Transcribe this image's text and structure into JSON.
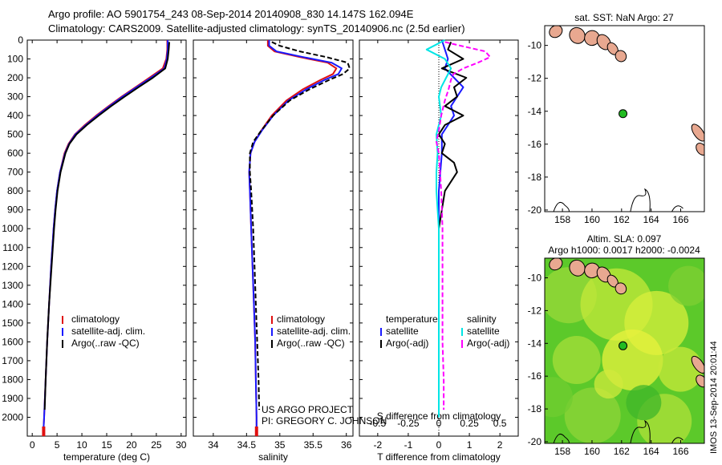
{
  "header": {
    "title1": "Argo profile: AO 5901754_243 08-Sep-2014 20140908_830 14.147S 162.094E",
    "title2": "Climatology: CARS2009. Satellite-adjusted climatology: synTS_20140906.nc (2.5d earlier)"
  },
  "stamp": "IMOS 13-Sep-2014 20:01:44",
  "colors": {
    "climatology": "#e01010",
    "satellite": "#1a1aff",
    "argo": "#000000",
    "sal_satellite": "#00e5e5",
    "sal_argo": "#ff00ff",
    "map_dot": "#22bb22",
    "land": "#e8a890"
  },
  "chart_data": [
    {
      "type": "line",
      "name": "temperature-panel",
      "xlabel": "temperature (deg C)",
      "ylim": [
        2100,
        0
      ],
      "xlim": [
        -1,
        31
      ],
      "xticks": [
        0,
        5,
        10,
        15,
        20,
        25,
        30
      ],
      "yticks": [
        0,
        100,
        200,
        300,
        400,
        500,
        600,
        700,
        800,
        900,
        1000,
        1100,
        1200,
        1300,
        1400,
        1500,
        1600,
        1700,
        1800,
        1900,
        2000
      ],
      "legend": [
        "climatology",
        "satellite-adj. clim.",
        "Argo(..raw -QC)"
      ],
      "series": [
        {
          "name": "climatology",
          "depth": [
            0,
            50,
            100,
            150,
            200,
            250,
            300,
            350,
            400,
            450,
            500,
            550,
            600,
            700,
            800,
            900,
            1000,
            1200,
            1400,
            1600,
            1800,
            2000,
            2050
          ],
          "values": [
            27.2,
            27.2,
            27.0,
            26.3,
            23.6,
            20.8,
            18.0,
            15.4,
            12.9,
            10.6,
            8.6,
            7.3,
            6.5,
            5.6,
            5.0,
            4.6,
            4.3,
            3.8,
            3.4,
            3.0,
            2.7,
            2.4,
            2.3
          ]
        },
        {
          "name": "satellite-adj. clim.",
          "depth": [
            0,
            50,
            100,
            150,
            200,
            250,
            300,
            350,
            400,
            450,
            500,
            550,
            600,
            700,
            800,
            900,
            1000,
            1200,
            1400,
            1600,
            1800,
            2000,
            2050
          ],
          "values": [
            27.3,
            27.3,
            27.1,
            26.6,
            23.9,
            21.0,
            18.2,
            15.6,
            13.1,
            10.8,
            8.7,
            7.4,
            6.6,
            5.6,
            5.0,
            4.6,
            4.3,
            3.8,
            3.4,
            3.0,
            2.7,
            2.4,
            2.3
          ]
        },
        {
          "name": "Argo(..raw -QC)",
          "depth": [
            10,
            50,
            100,
            150,
            200,
            250,
            300,
            350,
            400,
            450,
            500,
            550,
            600,
            700,
            800,
            900,
            1000,
            1200,
            1400,
            1600,
            1800,
            1960
          ],
          "values": [
            27.6,
            27.5,
            27.3,
            26.8,
            24.3,
            21.4,
            18.6,
            15.9,
            13.4,
            11.0,
            8.9,
            7.5,
            6.7,
            5.7,
            5.1,
            4.7,
            4.4,
            3.9,
            3.4,
            3.0,
            2.7,
            2.5
          ]
        }
      ]
    },
    {
      "type": "line",
      "name": "salinity-panel",
      "xlabel": "salinity",
      "ylim": [
        2100,
        0
      ],
      "xlim": [
        33.7,
        36.1
      ],
      "xticks": [
        34,
        34.5,
        35,
        35.5,
        36
      ],
      "xticklabels": [
        "34",
        "34.5",
        "35",
        "35.5",
        "36"
      ],
      "legend": [
        "climatology",
        "satellite-adj. clim.",
        "Argo(..raw -QC)"
      ],
      "annotation": [
        "US ARGO PROJECT",
        "PI: GREGORY C. JOHNSON"
      ],
      "series": [
        {
          "name": "climatology",
          "depth": [
            0,
            30,
            60,
            90,
            120,
            150,
            180,
            210,
            260,
            320,
            400,
            480,
            540,
            600,
            700,
            800,
            1000,
            1200,
            1400,
            1600,
            1800,
            2000,
            2050
          ],
          "values": [
            34.82,
            34.82,
            34.92,
            35.3,
            35.72,
            35.85,
            35.8,
            35.62,
            35.35,
            35.1,
            34.88,
            34.72,
            34.62,
            34.56,
            34.54,
            34.55,
            34.57,
            34.59,
            34.61,
            34.63,
            34.64,
            34.65,
            34.65
          ]
        },
        {
          "name": "satellite-adj. clim.",
          "depth": [
            0,
            30,
            60,
            90,
            120,
            150,
            180,
            210,
            260,
            320,
            400,
            480,
            540,
            600,
            700,
            800,
            1000,
            1200,
            1400,
            1600,
            1800,
            2000,
            2050
          ],
          "values": [
            34.84,
            34.84,
            34.95,
            35.35,
            35.78,
            35.93,
            35.88,
            35.68,
            35.4,
            35.13,
            34.9,
            34.73,
            34.62,
            34.56,
            34.54,
            34.55,
            34.57,
            34.59,
            34.61,
            34.63,
            34.64,
            34.65,
            34.65
          ]
        },
        {
          "name": "Argo(..raw -QC)",
          "depth": [
            10,
            30,
            60,
            90,
            120,
            150,
            180,
            210,
            260,
            320,
            400,
            480,
            540,
            600,
            700,
            800,
            1000,
            1200,
            1400,
            1600,
            1800,
            1960
          ],
          "values": [
            34.88,
            35.0,
            35.3,
            35.7,
            36.02,
            36.05,
            35.95,
            35.75,
            35.45,
            35.15,
            34.9,
            34.72,
            34.6,
            34.55,
            34.55,
            34.57,
            34.6,
            34.62,
            34.64,
            34.66,
            34.68,
            34.69
          ]
        }
      ]
    },
    {
      "type": "line",
      "name": "difference-panel",
      "xlabel": "T difference from climatology",
      "xlabel2": "S difference from climatology",
      "ylim": [
        2100,
        0
      ],
      "xlim": [
        -2.6,
        2.6
      ],
      "xticks": [
        -2,
        -1,
        0,
        1,
        2
      ],
      "xticks2": [
        -0.5,
        -0.25,
        0,
        0.25,
        0.5
      ],
      "xticklabels2": [
        "-0.5",
        "-0.25",
        "0",
        "0.25",
        "0.5"
      ],
      "legend_titles": [
        "temperature",
        "salinity"
      ],
      "legend": [
        "satellite",
        "Argo(-adj)",
        "satellite",
        "Argo(-adj)"
      ],
      "series": [
        {
          "name": "temperature satellite",
          "depth": [
            0,
            50,
            100,
            150,
            200,
            250,
            300,
            350,
            400,
            450,
            500,
            550,
            600,
            700,
            800,
            1000,
            1200,
            1400,
            1600,
            1800,
            2000
          ],
          "values": [
            0.1,
            0.2,
            0.3,
            0.2,
            0.5,
            0.8,
            0.6,
            0.4,
            0.5,
            0.3,
            0.1,
            0.1,
            0.1,
            0.05,
            0.0,
            0.0,
            0.0,
            0.0,
            0.0,
            0.0,
            0.0
          ]
        },
        {
          "name": "temperature Argo(-adj)",
          "depth": [
            10,
            50,
            100,
            150,
            200,
            250,
            300,
            350,
            400,
            450,
            500,
            550,
            600,
            650,
            700,
            800,
            1000,
            1200,
            1400,
            1600,
            1800,
            1960
          ],
          "values": [
            0.4,
            0.3,
            0.8,
            0.1,
            0.9,
            0.5,
            0.6,
            0.2,
            0.8,
            0.2,
            0.0,
            0.2,
            0.1,
            0.5,
            0.6,
            0.2,
            0.0,
            0.0,
            0.0,
            0.0,
            0.0,
            0.0
          ]
        },
        {
          "name": "salinity satellite",
          "depth": [
            0,
            50,
            100,
            150,
            200,
            250,
            300,
            400,
            500,
            600,
            700,
            800,
            1000,
            1200,
            1400,
            1600,
            1800,
            2000
          ],
          "values": [
            0.05,
            -0.1,
            0.05,
            0.1,
            0.06,
            0.02,
            0.0,
            0.02,
            -0.02,
            -0.01,
            -0.02,
            -0.02,
            0.0,
            0.0,
            0.0,
            0.0,
            0.0,
            0.0
          ]
        },
        {
          "name": "salinity Argo(-adj)",
          "depth": [
            10,
            30,
            60,
            90,
            120,
            150,
            180,
            210,
            260,
            320,
            400,
            480,
            540,
            600,
            700,
            800,
            1000,
            1200,
            1400,
            1600,
            1800,
            1960
          ],
          "values": [
            0.05,
            0.18,
            0.38,
            0.42,
            0.32,
            0.2,
            0.12,
            0.1,
            0.08,
            0.05,
            0.02,
            0.0,
            -0.02,
            0.0,
            0.01,
            0.02,
            0.03,
            0.03,
            0.03,
            0.03,
            0.04,
            0.04
          ]
        }
      ]
    },
    {
      "type": "scatter",
      "name": "sst-map",
      "title": "sat. SST: NaN Argo: 27",
      "xlim": [
        156.8,
        167.6
      ],
      "ylim": [
        -20.1,
        -8.8
      ],
      "xticks": [
        158,
        160,
        162,
        164,
        166
      ],
      "yticks": [
        -10,
        -12,
        -14,
        -16,
        -18,
        -20
      ],
      "point": {
        "lon": 162.094,
        "lat": -14.147
      }
    },
    {
      "type": "heatmap",
      "name": "sla-map",
      "title": "Altim. SLA: 0.097",
      "subtitle": "Argo h1000: 0.0017 h2000: -0.0024",
      "xlim": [
        156.8,
        167.6
      ],
      "ylim": [
        -20.1,
        -8.8
      ],
      "xticks": [
        158,
        160,
        162,
        164,
        166
      ],
      "yticks": [
        -10,
        -12,
        -14,
        -16,
        -18,
        -20
      ],
      "point": {
        "lon": 162.094,
        "lat": -14.147
      }
    }
  ]
}
